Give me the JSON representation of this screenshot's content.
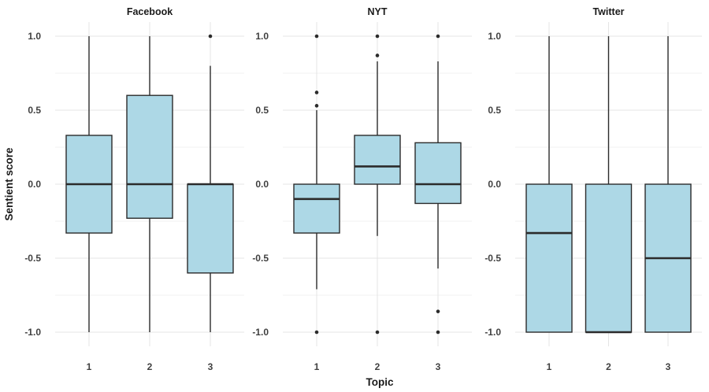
{
  "chart_data": {
    "type": "boxplot",
    "title": "",
    "xlabel": "Topic",
    "ylabel": "Sentient score",
    "categories": [
      "1",
      "2",
      "3"
    ],
    "ylim": [
      -1.0,
      1.0
    ],
    "grid": "on",
    "y_ticks": [
      {
        "value": 1.0,
        "label": "1.0"
      },
      {
        "value": 0.5,
        "label": "0.5"
      },
      {
        "value": 0.0,
        "label": "0.0"
      },
      {
        "value": -0.5,
        "label": "-0.5"
      },
      {
        "value": -1.0,
        "label": "-1.0"
      }
    ],
    "y_minor_ticks": [
      0.75,
      0.25,
      -0.25,
      -0.75
    ],
    "panels": [
      {
        "title": "Facebook",
        "boxes": [
          {
            "topic": "1",
            "q1": -0.33,
            "median": 0.0,
            "q3": 0.33,
            "whisker_low": -1.0,
            "whisker_high": 1.0,
            "outliers": []
          },
          {
            "topic": "2",
            "q1": -0.23,
            "median": 0.0,
            "q3": 0.6,
            "whisker_low": -1.0,
            "whisker_high": 1.0,
            "outliers": []
          },
          {
            "topic": "3",
            "q1": -0.6,
            "median": 0.0,
            "q3": 0.0,
            "whisker_low": -1.0,
            "whisker_high": 0.8,
            "outliers": [
              1.0
            ]
          }
        ]
      },
      {
        "title": "NYT",
        "boxes": [
          {
            "topic": "1",
            "q1": -0.33,
            "median": -0.1,
            "q3": 0.0,
            "whisker_low": -0.71,
            "whisker_high": 0.5,
            "outliers": [
              1.0,
              0.62,
              0.53,
              -1.0
            ]
          },
          {
            "topic": "2",
            "q1": 0.0,
            "median": 0.12,
            "q3": 0.33,
            "whisker_low": -0.35,
            "whisker_high": 0.83,
            "outliers": [
              1.0,
              0.87,
              -1.0
            ]
          },
          {
            "topic": "3",
            "q1": -0.13,
            "median": 0.0,
            "q3": 0.28,
            "whisker_low": -0.57,
            "whisker_high": 0.83,
            "outliers": [
              1.0,
              -0.86,
              -1.0
            ]
          }
        ]
      },
      {
        "title": "Twitter",
        "boxes": [
          {
            "topic": "1",
            "q1": -1.0,
            "median": -0.33,
            "q3": 0.0,
            "whisker_low": -1.0,
            "whisker_high": 1.0,
            "outliers": []
          },
          {
            "topic": "2",
            "q1": -1.0,
            "median": -1.0,
            "q3": 0.0,
            "whisker_low": -1.0,
            "whisker_high": 1.0,
            "outliers": []
          },
          {
            "topic": "3",
            "q1": -1.0,
            "median": -0.5,
            "q3": 0.0,
            "whisker_low": -1.0,
            "whisker_high": 1.0,
            "outliers": []
          }
        ]
      }
    ],
    "style": {
      "background": "#ffffff",
      "box_fill": "#ADD8E6",
      "box_border": "#2b2b2b",
      "grid_major": "#e4e4e4",
      "grid_minor": "#f2f2f2",
      "tick_label_color": "#404040",
      "title_color": "#1a1a1a"
    }
  }
}
